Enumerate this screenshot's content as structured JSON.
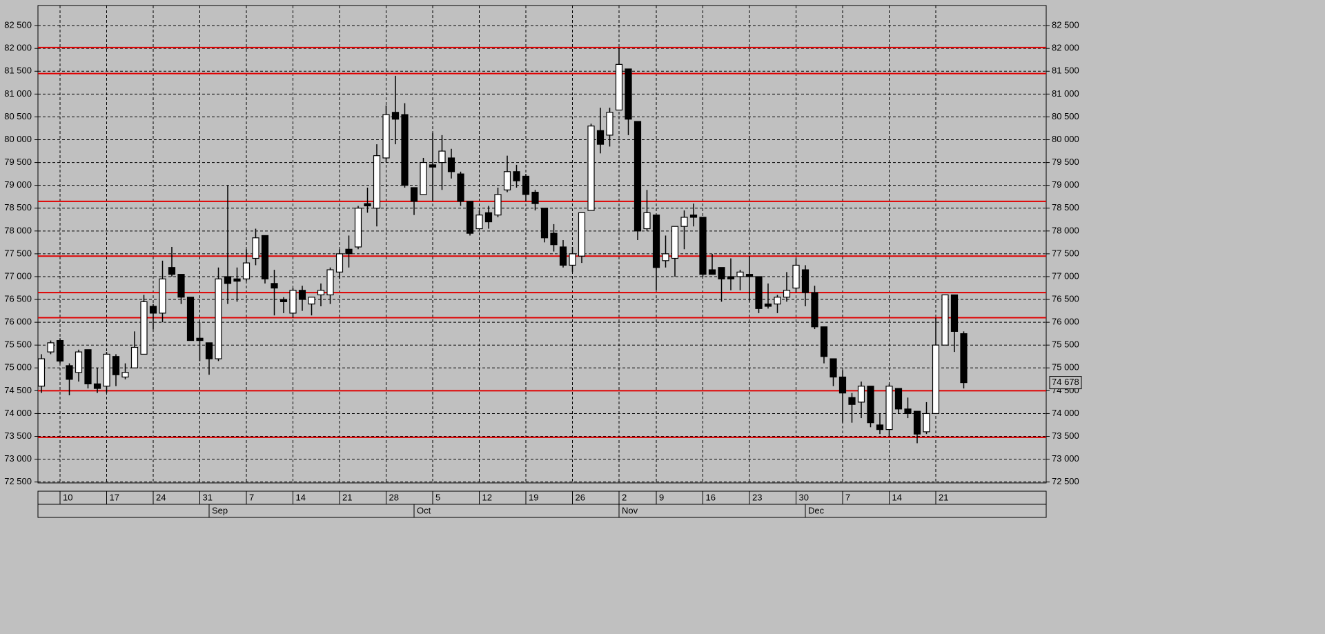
{
  "chart_data": {
    "type": "candlestick",
    "categories": [
      null,
      null,
      "10",
      null,
      null,
      null,
      null,
      "17",
      null,
      null,
      null,
      null,
      "24",
      null,
      null,
      null,
      null,
      "31",
      null,
      null,
      null,
      null,
      "7",
      null,
      null,
      null,
      null,
      "14",
      null,
      null,
      null,
      null,
      "21",
      null,
      null,
      null,
      null,
      "28",
      null,
      null,
      null,
      null,
      "5",
      null,
      null,
      null,
      null,
      "12",
      null,
      null,
      null,
      null,
      "19",
      null,
      null,
      null,
      null,
      "26",
      null,
      null,
      null,
      null,
      "2",
      null,
      null,
      null,
      "9",
      null,
      null,
      null,
      null,
      "16",
      null,
      null,
      null,
      null,
      "23",
      null,
      null,
      null,
      null,
      "30",
      null,
      null,
      null,
      null,
      "7",
      null,
      null,
      null,
      null,
      "14",
      null,
      null,
      null,
      null,
      "21",
      null,
      null,
      null
    ],
    "months": [
      null,
      null,
      null,
      null,
      null,
      null,
      null,
      null,
      null,
      null,
      null,
      null,
      null,
      null,
      null,
      null,
      null,
      null,
      "Sep",
      null,
      null,
      null,
      null,
      null,
      null,
      null,
      null,
      null,
      null,
      null,
      null,
      null,
      null,
      null,
      null,
      null,
      null,
      null,
      null,
      null,
      "Oct",
      null,
      null,
      null,
      null,
      null,
      null,
      null,
      null,
      null,
      null,
      null,
      null,
      null,
      null,
      null,
      null,
      null,
      null,
      null,
      null,
      null,
      "Nov",
      null,
      null,
      null,
      null,
      null,
      null,
      null,
      null,
      null,
      null,
      null,
      null,
      null,
      null,
      null,
      null,
      null,
      null,
      null,
      "Dec",
      null,
      null,
      null,
      null,
      null,
      null,
      null,
      null,
      null,
      null,
      null,
      null,
      null,
      null,
      null,
      null,
      null
    ],
    "open": [
      74600,
      75350,
      75600,
      75050,
      74900,
      75400,
      74650,
      74600,
      75250,
      74800,
      75000,
      75300,
      76350,
      76200,
      77200,
      77050,
      76550,
      75650,
      75550,
      75200,
      77000,
      76950,
      76950,
      77400,
      77900,
      76850,
      76500,
      76200,
      76700,
      76400,
      76600,
      76600,
      77100,
      77600,
      77650,
      78600,
      78500,
      79600,
      80600,
      80550,
      78950,
      78800,
      79450,
      79500,
      79600,
      79250,
      78650,
      78050,
      78400,
      78350,
      78900,
      79300,
      79200,
      78850,
      78500,
      77950,
      77650,
      77250,
      77450,
      78450,
      80200,
      80100,
      80650,
      81550,
      80400,
      78050,
      78350,
      77350,
      77400,
      78100,
      78350,
      78300,
      77150,
      77200,
      77000,
      77000,
      77050,
      77000,
      76400,
      76400,
      76550,
      76750,
      77150,
      76650,
      75900,
      75200,
      74800,
      74350,
      74250,
      74600,
      73750,
      73650,
      74550,
      74100,
      74050,
      73600,
      74000,
      75500,
      76600,
      75750
    ],
    "high": [
      75300,
      75600,
      75650,
      75100,
      75400,
      75400,
      75000,
      75350,
      75300,
      75100,
      75800,
      76600,
      76400,
      77350,
      77650,
      77050,
      76550,
      76000,
      75550,
      77200,
      79000,
      77200,
      77600,
      78050,
      77900,
      77150,
      76550,
      76750,
      76800,
      76550,
      76850,
      77200,
      77600,
      77900,
      78550,
      78950,
      79900,
      80750,
      81400,
      80800,
      78950,
      79600,
      80150,
      80100,
      79800,
      79300,
      78650,
      78450,
      78550,
      78950,
      79650,
      79450,
      79250,
      78900,
      78500,
      78150,
      77800,
      77650,
      78400,
      80350,
      80700,
      80700,
      82000,
      81550,
      80400,
      78900,
      78350,
      77900,
      78100,
      78450,
      78600,
      78300,
      77500,
      77200,
      77400,
      77150,
      77450,
      77000,
      76850,
      76600,
      77100,
      77400,
      77250,
      76800,
      75900,
      75200,
      74950,
      74450,
      74700,
      74600,
      74000,
      74650,
      74550,
      74350,
      74050,
      74250,
      76100,
      76600,
      76600,
      75800
    ],
    "low": [
      74450,
      75300,
      75100,
      74400,
      74700,
      74550,
      74450,
      74450,
      74600,
      74750,
      75000,
      75300,
      75850,
      76000,
      77000,
      76400,
      75600,
      75150,
      74850,
      75150,
      76400,
      76450,
      76900,
      77250,
      76850,
      76150,
      76200,
      76100,
      76250,
      76150,
      76350,
      76400,
      76950,
      77200,
      77600,
      78400,
      78100,
      79500,
      79900,
      78950,
      78350,
      78800,
      78650,
      78900,
      79150,
      78550,
      77900,
      78050,
      78050,
      78300,
      78850,
      78950,
      78650,
      78450,
      77750,
      77550,
      77200,
      77100,
      77300,
      78450,
      79700,
      79850,
      80650,
      80100,
      77800,
      78000,
      76700,
      77200,
      77000,
      77600,
      78100,
      77000,
      77050,
      76450,
      76700,
      76700,
      76450,
      76200,
      76300,
      76200,
      76450,
      76650,
      76350,
      75850,
      75100,
      74600,
      73800,
      73800,
      73900,
      73700,
      73550,
      73500,
      74000,
      73900,
      73350,
      73550,
      74000,
      75500,
      75350,
      74550
    ],
    "close": [
      75200,
      75550,
      75150,
      74750,
      75350,
      74650,
      74550,
      75300,
      74850,
      74900,
      75450,
      76450,
      76200,
      76950,
      77050,
      76550,
      75600,
      75600,
      75200,
      76950,
      76850,
      76900,
      77300,
      77850,
      76950,
      76750,
      76450,
      76700,
      76500,
      76550,
      76700,
      77150,
      77500,
      77500,
      78500,
      78550,
      79650,
      80550,
      80450,
      79000,
      78650,
      79500,
      79400,
      79750,
      79300,
      78650,
      77950,
      78350,
      78200,
      78800,
      79300,
      79100,
      78800,
      78600,
      77850,
      77700,
      77250,
      77500,
      78400,
      80300,
      79900,
      80600,
      81650,
      80450,
      78000,
      78400,
      77200,
      77500,
      78100,
      78300,
      78300,
      77050,
      77050,
      76950,
      76950,
      77100,
      77000,
      76300,
      76350,
      76550,
      76700,
      77250,
      76650,
      75900,
      75250,
      74800,
      74450,
      74200,
      74600,
      73800,
      73650,
      74600,
      74100,
      74000,
      73550,
      74000,
      75500,
      76600,
      75800,
      74678
    ],
    "up_color": "#ffffff",
    "down_color": "#000000",
    "ylim": [
      72480,
      82940
    ],
    "yticks": [
      {
        "value": 72500,
        "label": "72 500"
      },
      {
        "value": 73000,
        "label": "73 000"
      },
      {
        "value": 73500,
        "label": "73 500"
      },
      {
        "value": 74000,
        "label": "74 000"
      },
      {
        "value": 74500,
        "label": "74 500"
      },
      {
        "value": 75000,
        "label": "75 000"
      },
      {
        "value": 75500,
        "label": "75 500"
      },
      {
        "value": 76000,
        "label": "76 000"
      },
      {
        "value": 76500,
        "label": "76 500"
      },
      {
        "value": 77000,
        "label": "77 000"
      },
      {
        "value": 77500,
        "label": "77 500"
      },
      {
        "value": 78000,
        "label": "78 000"
      },
      {
        "value": 78500,
        "label": "78 500"
      },
      {
        "value": 79000,
        "label": "79 000"
      },
      {
        "value": 79500,
        "label": "79 500"
      },
      {
        "value": 80000,
        "label": "80 000"
      },
      {
        "value": 80500,
        "label": "80 500"
      },
      {
        "value": 81000,
        "label": "81 000"
      },
      {
        "value": 81500,
        "label": "81 500"
      },
      {
        "value": 82000,
        "label": "82 000"
      },
      {
        "value": 82500,
        "label": "82 500"
      }
    ],
    "grid": true,
    "levels": [
      82020,
      81450,
      78650,
      77450,
      76650,
      76100,
      74500,
      73480
    ],
    "level_color": "#e00000",
    "last_price": {
      "value": 74678,
      "label": "74 678"
    }
  }
}
